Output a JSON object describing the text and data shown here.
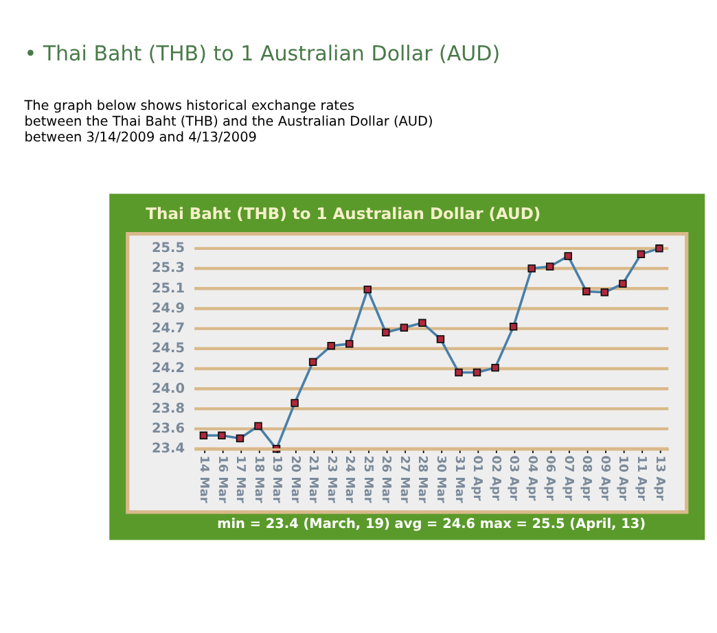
{
  "chart_data": {
    "type": "line",
    "title": "• Thai Baht (THB) to 1 Australian Dollar (AUD)",
    "subtitle": [
      "The graph below shows historical exchange rates",
      "between the Thai Baht (THB) and the Australian Dollar (AUD)",
      "between 3/14/2009 and 4/13/2009"
    ],
    "annotations": [
      "Thai Baht (THB) to 1 Australian Dollar (AUD)",
      "min = 23.4 (March, 19) avg = 24.6  max = 25.5 (April, 13)"
    ],
    "categories": [
      "14 Mar",
      "16 Mar",
      "17 Mar",
      "18 Mar",
      "19 Mar",
      "20 Mar",
      "21 Mar",
      "23 Mar",
      "24 Mar",
      "25 Mar",
      "26 Mar",
      "27 Mar",
      "28 Mar",
      "30 Mar",
      "31 Mar",
      "01 Apr",
      "02 Apr",
      "03 Apr",
      "04 Apr",
      "06 Apr",
      "07 Apr",
      "08 Apr",
      "09 Apr",
      "10 Apr",
      "11 Apr",
      "13 Apr"
    ],
    "series": [
      {
        "color": "#4a7fa8",
        "values": [
          23.54,
          23.54,
          23.51,
          23.64,
          23.4,
          23.88,
          24.31,
          24.48,
          24.5,
          25.07,
          24.62,
          24.67,
          24.72,
          24.55,
          24.2,
          24.2,
          24.25,
          24.68,
          25.29,
          25.31,
          25.42,
          25.05,
          25.04,
          25.13,
          25.44,
          25.5
        ]
      }
    ],
    "ylim": [
      23.4,
      25.5
    ],
    "yticks": [
      23.4,
      {
        "value": 23.61,
        "label": "23.6"
      },
      {
        "value": 23.82,
        "label": "23.8"
      },
      {
        "value": 24.03,
        "label": "24.0"
      },
      {
        "value": 24.24,
        "label": "24.2"
      },
      {
        "value": 24.45,
        "label": "24.5"
      },
      {
        "value": 24.66,
        "label": "24.7"
      },
      {
        "value": 24.87,
        "label": "24.9"
      },
      {
        "value": 25.08,
        "label": "25.1"
      },
      {
        "value": 25.29,
        "label": "25.3"
      },
      25.5
    ],
    "grid": "y",
    "marker": "square",
    "line_style": "solid"
  }
}
